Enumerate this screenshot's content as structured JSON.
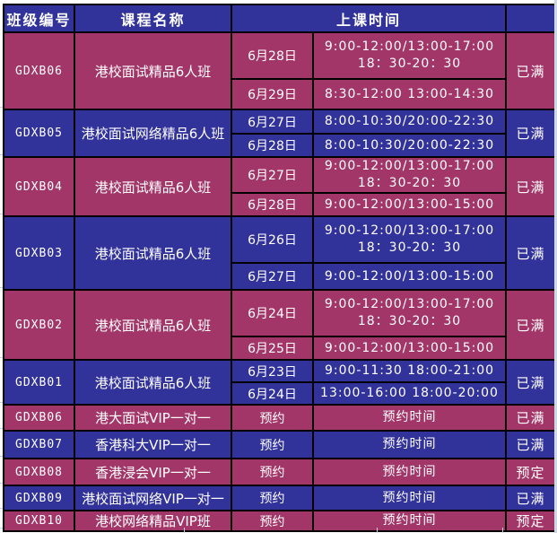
{
  "colors": {
    "header_bg": "#32329B",
    "blue_row": "#32329B",
    "crimson_row": "#A23668",
    "border": "#000000",
    "text": "#FFFFFF",
    "page_bg": "#FFFFFF",
    "right_margin_bg": "#CFD6E4",
    "grid_line": "#BFD0E4"
  },
  "header": {
    "class_id": "班级编号",
    "course_name": "课程名称",
    "class_time": "上课时间",
    "status": ""
  },
  "blocks": [
    {
      "class_id": "GDXB06",
      "course": "港校面试精品6人班",
      "theme": "crimson",
      "status": "已满",
      "sessions": [
        {
          "date": "6月28日",
          "time_lines": [
            "9:00-12:00/13:00-17:00",
            "18：30-20：30"
          ]
        },
        {
          "date": "6月29日",
          "time_lines": [
            "8:30-12:00 13:00-14:30"
          ]
        }
      ]
    },
    {
      "class_id": "GDXB05",
      "course": "港校面试网络精品6人班",
      "theme": "blue",
      "status": "已满",
      "sessions": [
        {
          "date": "6月27日",
          "time_lines": [
            "8:00-10:30/20:00-22:30"
          ]
        },
        {
          "date": "6月28日",
          "time_lines": [
            "8:00-10:30/20:00-22:30"
          ]
        }
      ]
    },
    {
      "class_id": "GDXB04",
      "course": "港校面试精品6人班",
      "theme": "crimson",
      "status": "已满",
      "sessions": [
        {
          "date": "6月27日",
          "time_lines": [
            "9:00-12:00/13:00-17:00",
            "18：30-20：30"
          ]
        },
        {
          "date": "6月28日",
          "time_lines": [
            "9:00-12:00/13:00-15:00"
          ]
        }
      ]
    },
    {
      "class_id": "GDXB03",
      "course": "港校面试精品6人班",
      "theme": "blue",
      "status": "已满",
      "sessions": [
        {
          "date": "6月26日",
          "time_lines": [
            "9:00-12:00/13:00-17:00",
            "18：30-20：30"
          ]
        },
        {
          "date": "6月27日",
          "time_lines": [
            "9:00-12:00/13:00-15:00"
          ]
        }
      ]
    },
    {
      "class_id": "GDXB02",
      "course": "港校面试精品6人班",
      "theme": "crimson",
      "status": "已满",
      "sessions": [
        {
          "date": "6月24日",
          "time_lines": [
            "9:00-12:00/13:00-17:00",
            "18：30-20：30"
          ]
        },
        {
          "date": "6月25日",
          "time_lines": [
            "9:00-12:00/13:00-15:00"
          ]
        }
      ]
    },
    {
      "class_id": "GDXB01",
      "course": "港校面试精品6人班",
      "theme": "blue",
      "status": "已满",
      "sessions": [
        {
          "date": "6月23日",
          "time_lines": [
            "9:00-11:30 18:00-21:00"
          ]
        },
        {
          "date": "6月24日",
          "time_lines": [
            "13:00-16:00 18:00-20:00"
          ]
        }
      ]
    }
  ],
  "booking_rows": [
    {
      "class_id": "GDXB06",
      "course": "港大面试VIP一对一",
      "theme": "crimson",
      "schedule": "预约",
      "time": "预约时间",
      "status": "已满"
    },
    {
      "class_id": "GDXB07",
      "course": "香港科大VIP一对一",
      "theme": "blue",
      "schedule": "预约",
      "time": "预约时间",
      "status": "已满"
    },
    {
      "class_id": "GDXB08",
      "course": "香港浸会VIP一对一",
      "theme": "crimson",
      "schedule": "预约",
      "time": "预约时间",
      "status": "预定"
    },
    {
      "class_id": "GDXB09",
      "course": "港校面试网络VIP一对一",
      "theme": "blue",
      "schedule": "预约",
      "time": "预约时间",
      "status": "已满"
    },
    {
      "class_id": "GDXB10",
      "course": "港校网络精品VIP班",
      "theme": "crimson",
      "schedule": "预约",
      "time": "预约时间",
      "status": "预定"
    }
  ]
}
